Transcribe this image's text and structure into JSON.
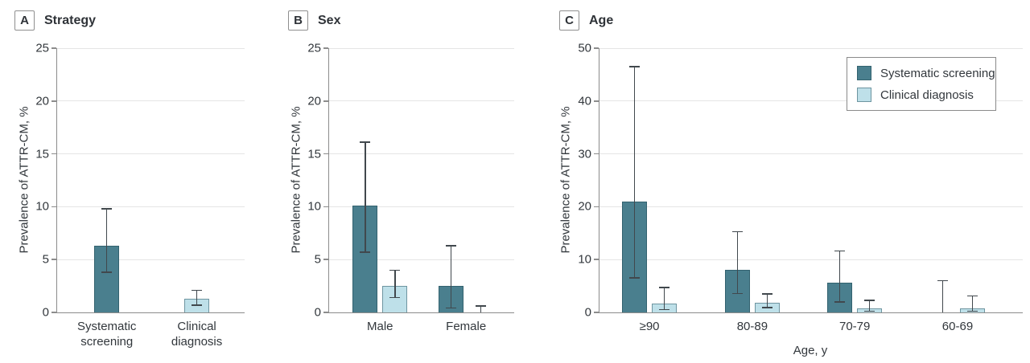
{
  "figure": {
    "y_axis_label": "Prevalence of ATTR-CM, %",
    "colors": {
      "systematic_fill": "#4A7F8E",
      "systematic_border": "#33626F",
      "clinical_fill": "#BEE0E9",
      "clinical_border": "#6E95A0",
      "error_bar": "#41484D",
      "axis": "#8C8C8C",
      "gridline": "#E5E5E5"
    },
    "legend": {
      "items": [
        {
          "series": "systematic",
          "label": "Systematic screening"
        },
        {
          "series": "clinical",
          "label": "Clinical diagnosis"
        }
      ]
    }
  },
  "chart_data": [
    {
      "type": "bar",
      "panel_letter": "A",
      "title": "Strategy",
      "ylabel": "Prevalence of ATTR-CM, %",
      "xlabel": "",
      "ylim": [
        0,
        25
      ],
      "yticks": [
        0,
        5,
        10,
        15,
        20,
        25
      ],
      "grid": true,
      "groups": [
        {
          "label": "Systematic\nscreening",
          "bars": [
            {
              "series": "systematic",
              "value": 6.3,
              "ci_low": 3.8,
              "ci_high": 9.8
            }
          ]
        },
        {
          "label": "Clinical\ndiagnosis",
          "bars": [
            {
              "series": "clinical",
              "value": 1.3,
              "ci_low": 0.7,
              "ci_high": 2.1
            }
          ]
        }
      ]
    },
    {
      "type": "bar",
      "panel_letter": "B",
      "title": "Sex",
      "ylabel": "Prevalence of ATTR-CM, %",
      "xlabel": "",
      "ylim": [
        0,
        25
      ],
      "yticks": [
        0,
        5,
        10,
        15,
        20,
        25
      ],
      "grid": true,
      "groups": [
        {
          "label": "Male",
          "bars": [
            {
              "series": "systematic",
              "value": 10.1,
              "ci_low": 5.7,
              "ci_high": 16.1
            },
            {
              "series": "clinical",
              "value": 2.5,
              "ci_low": 1.4,
              "ci_high": 4.0
            }
          ]
        },
        {
          "label": "Female",
          "bars": [
            {
              "series": "systematic",
              "value": 2.5,
              "ci_low": 0.4,
              "ci_high": 6.3
            },
            {
              "series": "clinical",
              "value": 0,
              "ci_low": 0,
              "ci_high": 0.6
            }
          ]
        }
      ]
    },
    {
      "type": "bar",
      "panel_letter": "C",
      "title": "Age",
      "ylabel": "Prevalence of ATTR-CM, %",
      "xlabel": "Age, y",
      "ylim": [
        0,
        50
      ],
      "yticks": [
        0,
        10,
        20,
        30,
        40,
        50
      ],
      "grid": true,
      "legend_position": "top-right",
      "groups": [
        {
          "label": "≥90",
          "bars": [
            {
              "series": "systematic",
              "value": 21.0,
              "ci_low": 6.5,
              "ci_high": 46.5
            },
            {
              "series": "clinical",
              "value": 1.6,
              "ci_low": 0.5,
              "ci_high": 4.7
            }
          ]
        },
        {
          "label": "80-89",
          "bars": [
            {
              "series": "systematic",
              "value": 8.1,
              "ci_low": 3.6,
              "ci_high": 15.3
            },
            {
              "series": "clinical",
              "value": 1.8,
              "ci_low": 0.9,
              "ci_high": 3.5
            }
          ]
        },
        {
          "label": "70-79",
          "bars": [
            {
              "series": "systematic",
              "value": 5.6,
              "ci_low": 2.0,
              "ci_high": 11.6
            },
            {
              "series": "clinical",
              "value": 0.7,
              "ci_low": 0.2,
              "ci_high": 2.3
            }
          ]
        },
        {
          "label": "60-69",
          "bars": [
            {
              "series": "systematic",
              "value": 0,
              "ci_low": 0,
              "ci_high": 6.0
            },
            {
              "series": "clinical",
              "value": 0.8,
              "ci_low": 0.2,
              "ci_high": 3.1
            }
          ]
        }
      ]
    }
  ]
}
